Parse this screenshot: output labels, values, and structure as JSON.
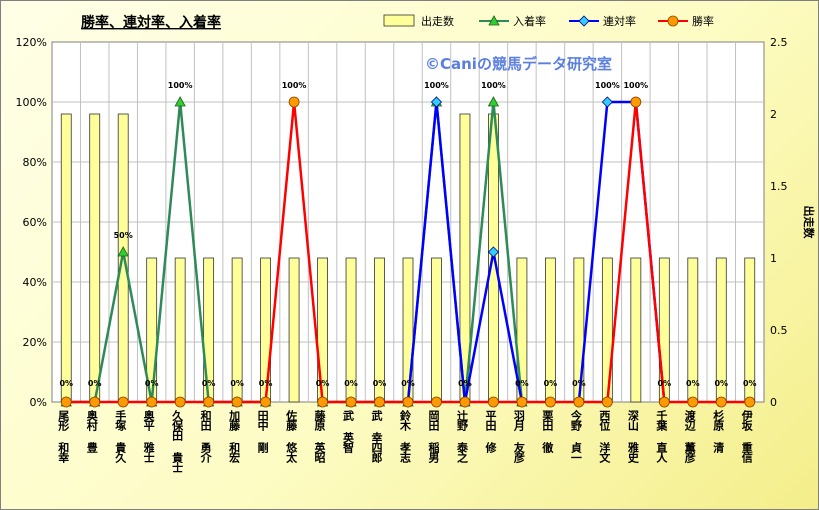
{
  "chart_data": {
    "type": "bar",
    "title": "勝率、連対率、入着率",
    "watermark": "©Caniの競馬データ研究室",
    "y_right_label": "出走数",
    "ylim_left": [
      0,
      1.2
    ],
    "left_ticks": [
      "0%",
      "20%",
      "40%",
      "60%",
      "80%",
      "100%",
      "120%"
    ],
    "ylim_right": [
      0,
      2.5
    ],
    "right_ticks": [
      "0",
      "0.5",
      "1",
      "1.5",
      "2",
      "2.5"
    ],
    "legend": {
      "runs": "出走数",
      "place": "入着率",
      "rentai": "連対率",
      "win": "勝率"
    },
    "categories": [
      "尾形 和幸",
      "奥村 豊",
      "手塚 貴久",
      "奥平 雅士",
      "久保田 貴士",
      "和田 勇介",
      "加藤 和宏",
      "田中 剛",
      "佐藤 悠太",
      "藤原 英昭",
      "武 英智",
      "武 幸四郎",
      "鈴木 孝志",
      "岡田 稲男",
      "辻野 泰之",
      "平田 修",
      "羽月 友彦",
      "栗田 徹",
      "今野 貞一",
      "西位 洋文",
      "深山 雅史",
      "千葉 直人",
      "渡辺 薫彦",
      "杉原 清",
      "伊坂 重信"
    ],
    "series": [
      {
        "name": "出走数",
        "type": "bar",
        "axis": "right",
        "color": "#ffff99",
        "values": [
          2,
          2,
          2,
          1,
          1,
          1,
          1,
          1,
          1,
          1,
          1,
          1,
          1,
          1,
          2,
          2,
          1,
          1,
          1,
          1,
          1,
          1,
          1,
          1,
          1
        ]
      },
      {
        "name": "入着率",
        "type": "line",
        "axis": "left",
        "color": "#2e8b57",
        "values": [
          0,
          0,
          0.5,
          0,
          1,
          0,
          0,
          0,
          null,
          0,
          0,
          0,
          0,
          1,
          0,
          1,
          0,
          null,
          null,
          null,
          null,
          null,
          null,
          null,
          null
        ]
      },
      {
        "name": "連対率",
        "type": "line",
        "axis": "left",
        "color": "#0000ff",
        "values": [
          null,
          null,
          null,
          null,
          null,
          null,
          null,
          null,
          null,
          null,
          null,
          null,
          0,
          1,
          0,
          0.5,
          0,
          null,
          0,
          1,
          1,
          0,
          null,
          null,
          null
        ]
      },
      {
        "name": "勝率",
        "type": "line",
        "axis": "left",
        "color": "#ff0000",
        "values": [
          0,
          0,
          0,
          0,
          0,
          0,
          0,
          0,
          1,
          0,
          0,
          0,
          0,
          0,
          0,
          0,
          0,
          0,
          0,
          0,
          1,
          0,
          0,
          0,
          0
        ]
      }
    ],
    "data_labels": [
      {
        "i": 0,
        "text": "0%"
      },
      {
        "i": 1,
        "text": "0%"
      },
      {
        "i": 2,
        "text": "50%"
      },
      {
        "i": 3,
        "text": "0%"
      },
      {
        "i": 4,
        "text": "100%"
      },
      {
        "i": 5,
        "text": "0%"
      },
      {
        "i": 6,
        "text": "0%"
      },
      {
        "i": 7,
        "text": "0%"
      },
      {
        "i": 8,
        "text": "100%"
      },
      {
        "i": 9,
        "text": "0%"
      },
      {
        "i": 10,
        "text": "0%"
      },
      {
        "i": 11,
        "text": "0%"
      },
      {
        "i": 12,
        "text": "0%"
      },
      {
        "i": 13,
        "text": "100%"
      },
      {
        "i": 14,
        "text": "0%"
      },
      {
        "i": 15,
        "text": "100%"
      },
      {
        "i": 16,
        "text": "0%"
      },
      {
        "i": 17,
        "text": "0%"
      },
      {
        "i": 18,
        "text": "0%"
      },
      {
        "i": 19,
        "text": "100%"
      },
      {
        "i": 20,
        "text": "100%"
      },
      {
        "i": 21,
        "text": "0%"
      },
      {
        "i": 22,
        "text": "0%"
      },
      {
        "i": 23,
        "text": "0%"
      },
      {
        "i": 24,
        "text": "0%"
      }
    ],
    "grid": true,
    "legend_position": "top"
  }
}
